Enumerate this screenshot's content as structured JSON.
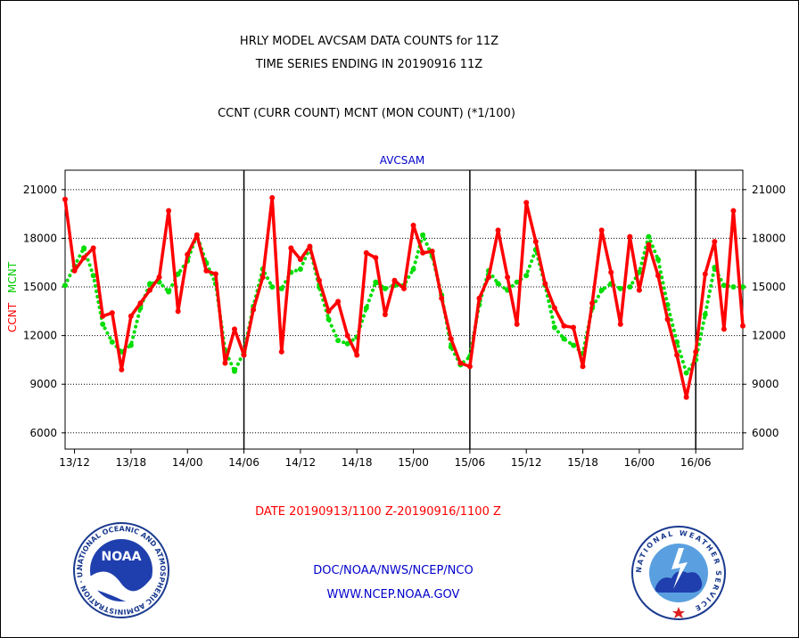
{
  "header": {
    "title_line1": "HRLY MODEL AVCSAM DATA COUNTS for 11Z",
    "title_line2": "TIME SERIES ENDING IN 20190916 11Z",
    "subtitle": "CCNT (CURR COUNT) MCNT (MON COUNT) (*1/100)"
  },
  "footer": {
    "date_range": "DATE 20190913/1100 Z-20190916/1100 Z",
    "org": "DOC/NOAA/NWS/NCEP/NCO",
    "url": "WWW.NCEP.NOAA.GOV"
  },
  "logos": {
    "noaa_text": "NOAA",
    "noaa_ring": "NATIONAL OCEANIC AND ATMOSPHERIC ADMINISTRATION · U.S. DEPARTMENT OF COMMERCE ·",
    "nws_ring": "NATIONAL WEATHER SERVICE"
  },
  "colors": {
    "ccnt": "#ff0000",
    "mcnt": "#00dd00",
    "title": "#000000",
    "panel_title": "#0000cc",
    "footer_date": "#ff0000",
    "footer_org": "#0000cc"
  },
  "chart_data": {
    "type": "line",
    "title": "AVCSAM",
    "ylabel_left_1": "CCNT",
    "ylabel_left_2": "MCNT",
    "ylim": [
      5000,
      22200
    ],
    "yticks": [
      6000,
      9000,
      12000,
      15000,
      18000,
      21000
    ],
    "x_tick_labels": [
      "13/12",
      "13/18",
      "14/00",
      "14/06",
      "14/12",
      "14/18",
      "15/00",
      "15/06",
      "15/12",
      "15/18",
      "16/00",
      "16/06"
    ],
    "x_tick_hours": [
      1,
      7,
      13,
      19,
      25,
      31,
      37,
      43,
      49,
      55,
      61,
      67
    ],
    "day_boundary_hours": [
      19,
      43,
      67
    ],
    "grid": "horizontal dotted",
    "series": [
      {
        "name": "CCNT",
        "style": "solid",
        "values": [
          20400,
          16000,
          16800,
          17400,
          13200,
          13400,
          9900,
          13200,
          14000,
          14800,
          15600,
          19700,
          13500,
          17000,
          18200,
          16000,
          15800,
          10300,
          12400,
          10800,
          13600,
          15600,
          20500,
          11000,
          17400,
          16700,
          17500,
          15400,
          13500,
          14100,
          12000,
          10800,
          17100,
          16800,
          13300,
          15400,
          14900,
          18800,
          17100,
          17200,
          14300,
          11800,
          10300,
          10100,
          14300,
          15600,
          18500,
          15600,
          12700,
          20200,
          17800,
          15200,
          13700,
          12600,
          12500,
          10100,
          14000,
          18500,
          15900,
          12700,
          18100,
          14800,
          17600,
          15700,
          13000,
          10800,
          8200,
          11000,
          15800,
          17800,
          12400,
          19700,
          12600
        ]
      },
      {
        "name": "MCNT",
        "style": "dotted",
        "values": [
          15100,
          16300,
          17400,
          15700,
          12700,
          11600,
          11000,
          11400,
          13700,
          15200,
          15300,
          14700,
          15800,
          16600,
          18200,
          16500,
          15200,
          11100,
          9800,
          11000,
          13800,
          16100,
          15000,
          14900,
          15900,
          16100,
          17400,
          15000,
          13000,
          11700,
          11500,
          11900,
          13700,
          15300,
          14900,
          15100,
          15100,
          16100,
          18200,
          16900,
          14500,
          11300,
          10200,
          10700,
          13900,
          16000,
          15200,
          14800,
          15300,
          15700,
          17300,
          15100,
          12500,
          11800,
          11400,
          10900,
          13700,
          14800,
          15200,
          14900,
          15000,
          15900,
          18100,
          16700,
          13900,
          11600,
          9700,
          10500,
          13300,
          16200,
          15100,
          15000,
          15000
        ]
      }
    ]
  }
}
